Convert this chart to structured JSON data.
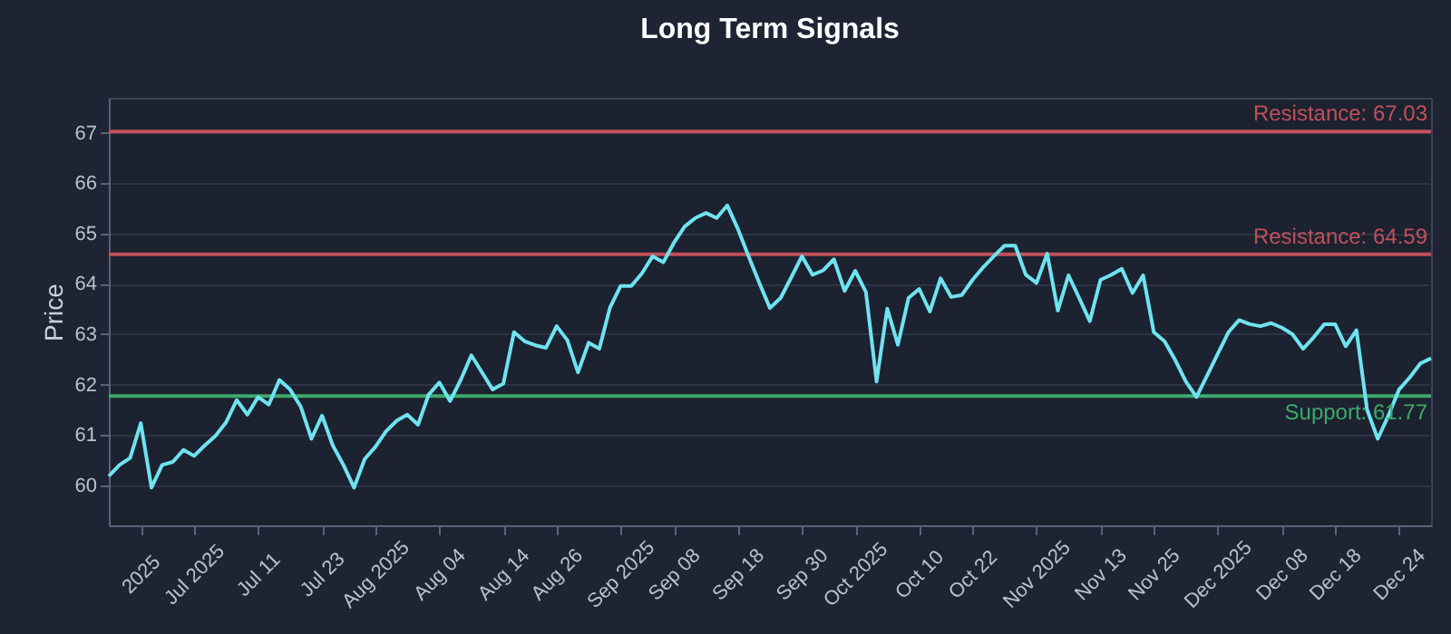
{
  "chart_data": {
    "type": "line",
    "title": "Long Term Signals",
    "ylabel": "Price",
    "categories": [
      null,
      null,
      null,
      "2025",
      null,
      null,
      null,
      null,
      "Jul 2025",
      null,
      null,
      null,
      null,
      null,
      "Jul 11",
      null,
      null,
      null,
      null,
      null,
      "Jul 23",
      null,
      null,
      null,
      null,
      "Aug 2025",
      null,
      null,
      null,
      null,
      null,
      "Aug 04",
      null,
      null,
      null,
      null,
      null,
      "Aug 14",
      null,
      null,
      null,
      null,
      "Aug 26",
      null,
      null,
      null,
      null,
      null,
      "Sep 2025",
      null,
      null,
      null,
      null,
      "Sep 08",
      null,
      null,
      null,
      null,
      null,
      "Sep 18",
      null,
      null,
      null,
      null,
      null,
      "Sep 30",
      null,
      null,
      null,
      null,
      "Oct 2025",
      null,
      null,
      null,
      null,
      null,
      "Oct 10",
      null,
      null,
      null,
      null,
      "Oct 22",
      null,
      null,
      null,
      null,
      null,
      "Nov 2025",
      null,
      null,
      null,
      null,
      null,
      "Nov 13",
      null,
      null,
      null,
      null,
      "Nov 25",
      null,
      null,
      null,
      null,
      null,
      "Dec 2025",
      null,
      null,
      null,
      null,
      null,
      "Dec 08",
      null,
      null,
      null,
      null,
      "Dec 18",
      null,
      null,
      null,
      null,
      null,
      "Dec 24",
      null,
      null,
      null
    ],
    "series": [
      {
        "color": "#6fe3f0",
        "values": [
          60.18,
          60.4,
          60.54,
          61.23,
          59.95,
          60.4,
          60.46,
          60.7,
          60.58,
          60.79,
          60.98,
          61.25,
          61.69,
          61.4,
          61.75,
          61.6,
          62.09,
          61.9,
          61.56,
          60.92,
          61.38,
          60.79,
          60.4,
          59.95,
          60.52,
          60.76,
          61.07,
          61.28,
          61.4,
          61.2,
          61.8,
          62.04,
          61.67,
          62.09,
          62.58,
          62.24,
          61.9,
          62.02,
          63.04,
          62.86,
          62.78,
          62.73,
          63.16,
          62.88,
          62.24,
          62.83,
          62.71,
          63.53,
          63.96,
          63.96,
          64.21,
          64.55,
          64.43,
          64.82,
          65.14,
          65.31,
          65.41,
          65.31,
          65.56,
          65.09,
          64.55,
          64.02,
          63.52,
          63.72,
          64.13,
          64.55,
          64.18,
          64.27,
          64.49,
          63.86,
          64.26,
          63.84,
          62.06,
          63.51,
          62.79,
          63.72,
          63.9,
          63.45,
          64.11,
          63.74,
          63.78,
          64.08,
          64.33,
          64.55,
          64.76,
          64.76,
          64.18,
          64.02,
          64.6,
          63.47,
          64.17,
          63.72,
          63.26,
          64.08,
          64.18,
          64.3,
          63.82,
          64.17,
          63.04,
          62.86,
          62.49,
          62.06,
          61.75,
          62.18,
          62.61,
          63.04,
          63.28,
          63.2,
          63.16,
          63.22,
          63.13,
          63.0,
          62.71,
          62.94,
          63.2,
          63.2,
          62.76,
          63.08,
          61.5,
          60.92,
          61.38,
          61.9,
          62.14,
          62.42,
          62.52
        ]
      }
    ],
    "ylim": [
      59.2,
      67.7
    ],
    "yticks": [
      60,
      61,
      62,
      63,
      64,
      65,
      66,
      67
    ],
    "grid": "y",
    "ref_lines": [
      {
        "axis": "y",
        "value": 67.03,
        "label": "Resistance: 67.03",
        "color": "#c0505a"
      },
      {
        "axis": "y",
        "value": 64.59,
        "label": "Resistance: 64.59",
        "color": "#c0505a"
      },
      {
        "axis": "y",
        "value": 61.77,
        "label": "Support: 61.77",
        "color": "#3daa6a"
      }
    ]
  }
}
